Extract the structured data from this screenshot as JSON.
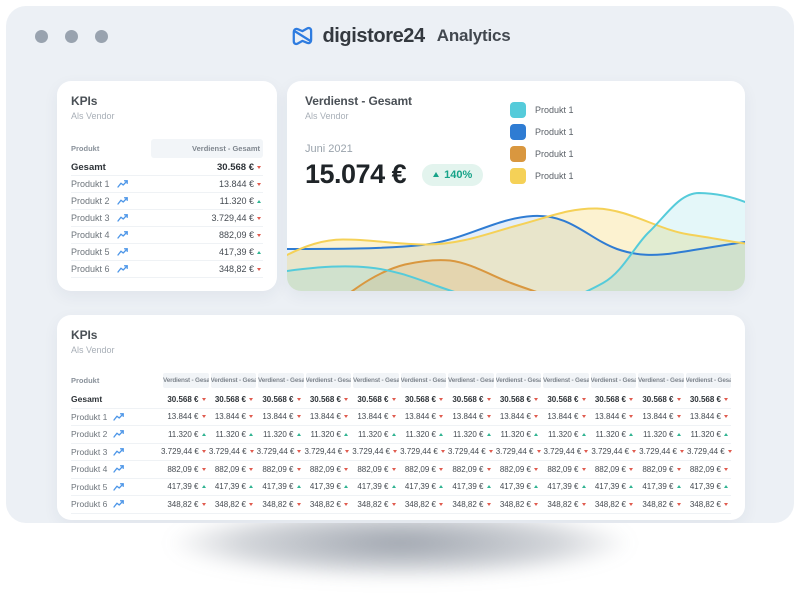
{
  "header": {
    "logo_text": "digistore24",
    "app_title": "Analytics",
    "logo_color": "#2E7CE0",
    "window_dot_color": "#99A3AF"
  },
  "kpi_card": {
    "title": "KPIs",
    "subtitle": "Als Vendor",
    "col_produkt": "Produkt",
    "col_value": "Verdienst - Gesamt"
  },
  "kpi_rows": [
    {
      "label": "Gesamt",
      "value": "30.568 €",
      "trend": "down",
      "total": true
    },
    {
      "label": "Produkt 1",
      "value": "13.844 €",
      "trend": "down",
      "total": false
    },
    {
      "label": "Produkt 2",
      "value": "11.320 €",
      "trend": "up",
      "total": false
    },
    {
      "label": "Produkt 3",
      "value": "3.729,44 €",
      "trend": "down",
      "total": false
    },
    {
      "label": "Produkt 4",
      "value": "882,09 €",
      "trend": "down",
      "total": false
    },
    {
      "label": "Produkt 5",
      "value": "417,39 €",
      "trend": "up",
      "total": false
    },
    {
      "label": "Produkt 6",
      "value": "348,82 €",
      "trend": "down",
      "total": false
    }
  ],
  "chart_card": {
    "title": "Verdienst - Gesamt",
    "subtitle": "Als Vendor",
    "period": "Juni 2021",
    "amount": "15.074 €",
    "change_label": "140%",
    "change_direction": "up",
    "badge_bg": "#E3F4EE",
    "badge_text_color": "#17A389",
    "legend": [
      {
        "label": "Produkt 1",
        "color": "#55CBDA"
      },
      {
        "label": "Produkt 1",
        "color": "#2F7CD3"
      },
      {
        "label": "Produkt 1",
        "color": "#D9973F"
      },
      {
        "label": "Produkt 1",
        "color": "#F5D157"
      }
    ]
  },
  "chart_data": {
    "type": "area",
    "title": "Verdienst - Gesamt",
    "period": "Juni 2021",
    "total_value": "15.074 €",
    "change_percent": 140,
    "axes_visible": false,
    "grid": false,
    "legend_position": "top-right",
    "x_relative": [
      0,
      0.1,
      0.2,
      0.3,
      0.4,
      0.5,
      0.6,
      0.7,
      0.8,
      0.9,
      1
    ],
    "series": [
      {
        "name": "Produkt 1",
        "color": "#55CBDA",
        "relative_values": [
          0.18,
          0.2,
          0.1,
          0.0,
          0.0,
          0.0,
          0.05,
          0.3,
          0.68,
          0.92,
          0.85
        ]
      },
      {
        "name": "Produkt 1",
        "color": "#2F7CD3",
        "relative_values": [
          0.4,
          0.4,
          0.42,
          0.55,
          0.71,
          0.6,
          0.4,
          0.34,
          0.36,
          0.42,
          0.47
        ]
      },
      {
        "name": "Produkt 1",
        "color": "#D9973F",
        "relative_values": [
          0.0,
          0.05,
          0.22,
          0.3,
          0.22,
          0.08,
          0.0,
          0.0,
          0.0,
          0.0,
          0.0
        ]
      },
      {
        "name": "Produkt 1",
        "color": "#F5D157",
        "relative_values": [
          0.34,
          0.48,
          0.45,
          0.44,
          0.5,
          0.62,
          0.78,
          0.68,
          0.52,
          0.46,
          0.45
        ]
      }
    ]
  },
  "table_card": {
    "title": "KPIs",
    "subtitle": "Als Vendor",
    "col_produkt": "Produkt",
    "col_value": "Verdienst - Gesamt",
    "columns_count": 12
  },
  "colors": {
    "frame_bg": "#ECF0F5",
    "card_bg": "#FFFFFF",
    "marker_down": "#E05A4E",
    "marker_up": "#2FB391",
    "sparkline": "#4D96E8",
    "header_cell_bg": "#F1F4F7"
  }
}
